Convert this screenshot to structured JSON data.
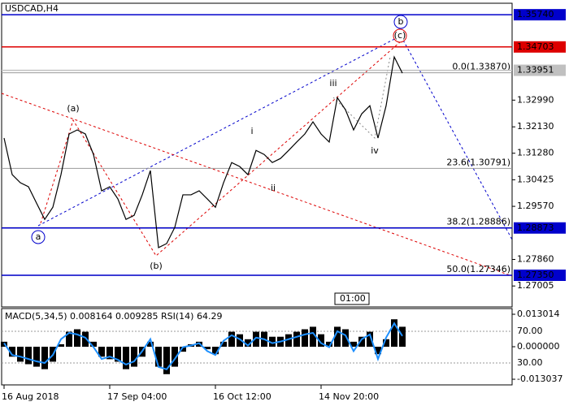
{
  "chart_data": [
    {
      "type": "line",
      "title": "USDCAD,H4",
      "color": "#000000",
      "categories": [
        "16 Aug 2018",
        null,
        null,
        null,
        null,
        null,
        null,
        null,
        null,
        null,
        null,
        null,
        null,
        "17 Sep 04:00",
        null,
        null,
        null,
        null,
        null,
        null,
        null,
        null,
        null,
        null,
        null,
        null,
        "16 Oct 12:00",
        null,
        null,
        null,
        null,
        null,
        null,
        null,
        null,
        null,
        null,
        null,
        null,
        "14 Nov 20:00",
        null,
        null,
        null,
        null,
        null,
        null,
        null,
        null,
        null,
        null
      ],
      "values": [
        1.3177,
        1.3059,
        1.3033,
        1.302,
        1.2967,
        1.2915,
        1.2954,
        1.3059,
        1.319,
        1.3203,
        1.319,
        1.3124,
        1.3007,
        1.302,
        1.2981,
        1.2915,
        1.2928,
        1.2994,
        1.3072,
        1.2824,
        1.2837,
        1.2889,
        1.2994,
        1.2994,
        1.3007,
        1.2981,
        1.2954,
        1.3033,
        1.3098,
        1.3085,
        1.3059,
        1.3137,
        1.3124,
        1.3098,
        1.3111,
        1.3137,
        1.3164,
        1.319,
        1.3229,
        1.319,
        1.3164,
        1.3307,
        1.3268,
        1.3203,
        1.3255,
        1.3281,
        1.3177,
        1.3281,
        1.3438,
        1.3386
      ],
      "ylim": [
        1.2633,
        1.3611
      ],
      "yticks": [
        {
          "value": 1.3299,
          "label": "1.32990"
        },
        {
          "value": 1.3213,
          "label": "1.32130"
        },
        {
          "value": 1.3128,
          "label": "1.31280"
        },
        1.30425,
        {
          "value": 1.2957,
          "label": "1.29570"
        },
        {
          "value": 1.2786,
          "label": "1.27860"
        },
        1.27005
      ],
      "levels": [
        {
          "value": 1.3574,
          "label": "1.35740",
          "color": "#0000cc"
        },
        {
          "value": 1.34703,
          "label": "1.34703",
          "color": "#dd0000"
        },
        {
          "value": 1.33951,
          "label": "1.33951",
          "color": "#c0c0c0"
        },
        {
          "value": 1.28873,
          "label": "1.28873",
          "color": "#0000cc"
        },
        {
          "value": 1.2735,
          "label": "1.27350",
          "color": "#0000cc"
        }
      ],
      "fibonacci": [
        {
          "value": 1.3387,
          "label": "0.0(1.33870)"
        },
        {
          "value": 1.30791,
          "label": "23.6(1.30791)"
        },
        {
          "value": 1.28886,
          "label": "38.2(1.28886)"
        },
        {
          "value": 1.27346,
          "label": "50.0(1.27346)"
        }
      ],
      "waves": [
        {
          "label": "(a)",
          "color": "#dd0000",
          "circled": false
        },
        {
          "label": "(b)",
          "color": "#dd0000",
          "circled": false
        },
        {
          "label": "(c)",
          "color": "#dd0000",
          "circled": true
        },
        {
          "label": "a",
          "color": "#0000cc",
          "circled": true
        },
        {
          "label": "b",
          "color": "#0000cc",
          "circled": true
        },
        {
          "label": "i",
          "color": "#777777",
          "circled": false
        },
        {
          "label": "ii",
          "color": "#777777",
          "circled": false
        },
        {
          "label": "iii",
          "color": "#777777",
          "circled": false
        },
        {
          "label": "iv",
          "color": "#777777",
          "circled": false
        }
      ],
      "time_tag": "01:00"
    },
    {
      "type": "macd",
      "title": "MACD(5,34,5) 0.008164 0.009285 RSI(14) 64.29",
      "series": [
        {
          "color": "#000000",
          "values": [
            0.002,
            -0.004,
            -0.006,
            -0.007,
            -0.008,
            -0.009,
            -0.006,
            0.001,
            0.006,
            0.007,
            0.006,
            0.002,
            -0.004,
            -0.005,
            -0.006,
            -0.009,
            -0.008,
            -0.004,
            0.002,
            -0.008,
            -0.011,
            -0.008,
            -0.002,
            0.001,
            0.002,
            -0.001,
            -0.003,
            0.002,
            0.006,
            0.005,
            0.003,
            0.006,
            0.006,
            0.004,
            0.004,
            0.005,
            0.006,
            0.007,
            0.008,
            0.005,
            0.002,
            0.008,
            0.007,
            0.002,
            0.004,
            0.006,
            -0.003,
            0.003,
            0.011,
            0.008
          ]
        },
        {
          "color": "#1e90ff",
          "axis": "y2",
          "values": [
            55,
            40,
            38,
            35,
            32,
            30,
            40,
            60,
            68,
            66,
            62,
            50,
            35,
            38,
            34,
            28,
            32,
            45,
            60,
            25,
            22,
            35,
            50,
            52,
            55,
            45,
            40,
            58,
            65,
            60,
            52,
            62,
            60,
            55,
            57,
            60,
            63,
            66,
            68,
            55,
            50,
            70,
            65,
            45,
            60,
            66,
            35,
            62,
            80,
            64
          ]
        }
      ],
      "ylim": [
        -0.0153,
        0.0153
      ],
      "yticks": [
        0.013014,
        {
          "value": 0,
          "label": "0.000000"
        },
        -0.013037
      ],
      "y2lim": [
        2.3,
        98.7
      ],
      "y2ticks": [
        {
          "value": 70,
          "label": "70.00"
        },
        {
          "value": 30,
          "label": "30.00"
        }
      ]
    }
  ]
}
